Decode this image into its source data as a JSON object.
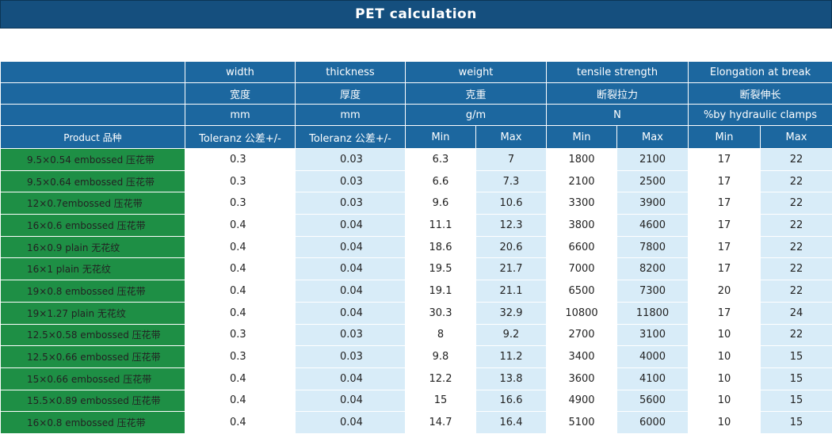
{
  "title": "PET calculation",
  "headers": {
    "row1": [
      "width",
      "thickness",
      "weight",
      "tensile strength",
      "Elongation at break"
    ],
    "row2": [
      "宽度",
      "厚度",
      "克重",
      "断裂拉力",
      "断裂伸长"
    ],
    "row3": [
      "mm",
      "mm",
      "g/m",
      "N",
      "%by hydraulic clamps"
    ],
    "row4": [
      "Product 品种",
      "Toleranz 公差+/-",
      "Toleranz 公差+/-",
      "Min",
      "Max",
      "Min",
      "Max",
      "Min",
      "Max"
    ]
  },
  "rows": [
    [
      "9.5×0.54 embossed 压花带",
      "0.3",
      "0.03",
      "6.3",
      "7",
      "1800",
      "2100",
      "17",
      "22"
    ],
    [
      "9.5×0.64 embossed 压花带",
      "0.3",
      "0.03",
      "6.6",
      "7.3",
      "2100",
      "2500",
      "17",
      "22"
    ],
    [
      "12×0.7embossed 压花带",
      "0.3",
      "0.03",
      "9.6",
      "10.6",
      "3300",
      "3900",
      "17",
      "22"
    ],
    [
      "16×0.6 embossed 压花带",
      "0.4",
      "0.04",
      "11.1",
      "12.3",
      "3800",
      "4600",
      "17",
      "22"
    ],
    [
      "16×0.9 plain 无花纹",
      "0.4",
      "0.04",
      "18.6",
      "20.6",
      "6600",
      "7800",
      "17",
      "22"
    ],
    [
      "16×1 plain 无花纹",
      "0.4",
      "0.04",
      "19.5",
      "21.7",
      "7000",
      "8200",
      "17",
      "22"
    ],
    [
      "19×0.8 embossed 压花带",
      "0.4",
      "0.04",
      "19.1",
      "21.1",
      "6500",
      "7300",
      "20",
      "22"
    ],
    [
      "19×1.27 plain 无花纹",
      "0.4",
      "0.04",
      "30.3",
      "32.9",
      "10800",
      "11800",
      "17",
      "24"
    ],
    [
      "12.5×0.58 embossed 压花带",
      "0.3",
      "0.03",
      "8",
      "9.2",
      "2700",
      "3100",
      "10",
      "22"
    ],
    [
      "12.5×0.66 embossed 压花带",
      "0.3",
      "0.03",
      "9.8",
      "11.2",
      "3400",
      "4000",
      "10",
      "15"
    ],
    [
      "15×0.66 embossed 压花带",
      "0.4",
      "0.04",
      "12.2",
      "13.8",
      "3600",
      "4100",
      "10",
      "15"
    ],
    [
      "15.5×0.89 embossed 压花带",
      "0.4",
      "0.04",
      "15",
      "16.6",
      "4900",
      "5600",
      "10",
      "15"
    ],
    [
      "16×0.8 embossed 压花带",
      "0.4",
      "0.04",
      "14.7",
      "16.4",
      "5100",
      "6000",
      "10",
      "15"
    ]
  ],
  "colors": {
    "title_bg": "#154f7e",
    "header_bg": "#1c679f",
    "product_bg": "#1e8f45",
    "alt_cell_bg": "#d8ecf8"
  }
}
